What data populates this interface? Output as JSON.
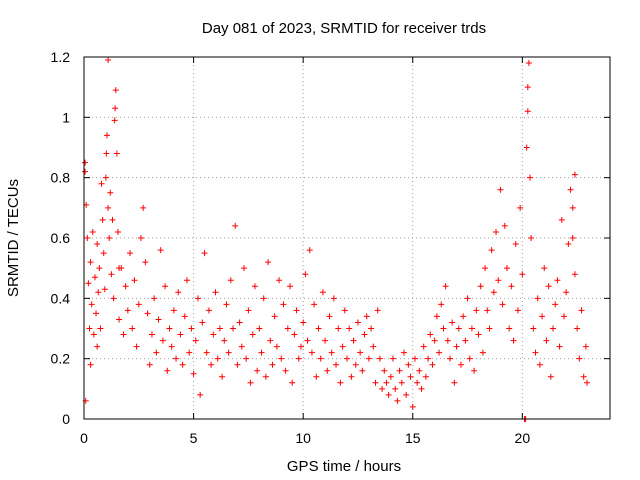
{
  "chart_data": {
    "type": "scatter",
    "title": "Day 081 of 2023, SRMTID for receiver trds",
    "xlabel": "GPS time / hours",
    "ylabel": "SRMTID / TECUs",
    "xlim": [
      0,
      24
    ],
    "ylim": [
      0,
      1.2
    ],
    "x_ticks": [
      0,
      5,
      10,
      15,
      20
    ],
    "x_tick_labels": [
      "0",
      "5",
      "10",
      "15",
      "20"
    ],
    "y_ticks": [
      0,
      0.2,
      0.4,
      0.6,
      0.8,
      1.0,
      1.2
    ],
    "y_tick_labels": [
      "0",
      "0.2",
      "0.4",
      "0.6",
      "0.8",
      "1",
      "1.2"
    ],
    "grid": true,
    "marker": "+",
    "marker_color": "#ff0000",
    "series": [
      {
        "name": "SRMTID",
        "points": [
          [
            0.05,
            0.85
          ],
          [
            0.05,
            0.82
          ],
          [
            0.1,
            0.71
          ],
          [
            0.08,
            0.06
          ],
          [
            0.15,
            0.6
          ],
          [
            0.2,
            0.45
          ],
          [
            0.25,
            0.3
          ],
          [
            0.3,
            0.52
          ],
          [
            0.35,
            0.38
          ],
          [
            0.4,
            0.62
          ],
          [
            0.45,
            0.28
          ],
          [
            0.5,
            0.47
          ],
          [
            0.55,
            0.35
          ],
          [
            0.6,
            0.58
          ],
          [
            0.65,
            0.42
          ],
          [
            0.7,
            0.5
          ],
          [
            0.75,
            0.3
          ],
          [
            0.8,
            0.78
          ],
          [
            0.85,
            0.66
          ],
          [
            0.9,
            0.55
          ],
          [
            0.95,
            0.43
          ],
          [
            1.0,
            0.8
          ],
          [
            1.02,
            0.88
          ],
          [
            1.05,
            0.94
          ],
          [
            1.1,
            0.7
          ],
          [
            1.1,
            1.19
          ],
          [
            1.15,
            0.6
          ],
          [
            1.2,
            0.75
          ],
          [
            1.25,
            0.48
          ],
          [
            1.3,
            0.66
          ],
          [
            1.35,
            0.4
          ],
          [
            1.4,
            0.99
          ],
          [
            1.42,
            1.03
          ],
          [
            1.45,
            1.09
          ],
          [
            1.5,
            0.88
          ],
          [
            1.55,
            0.62
          ],
          [
            1.6,
            0.33
          ],
          [
            1.7,
            0.5
          ],
          [
            1.8,
            0.28
          ],
          [
            1.9,
            0.44
          ],
          [
            2.0,
            0.36
          ],
          [
            2.1,
            0.55
          ],
          [
            2.2,
            0.3
          ],
          [
            2.3,
            0.46
          ],
          [
            2.4,
            0.24
          ],
          [
            2.5,
            0.38
          ],
          [
            2.6,
            0.6
          ],
          [
            2.7,
            0.7
          ],
          [
            2.8,
            0.52
          ],
          [
            2.9,
            0.35
          ],
          [
            3.0,
            0.18
          ],
          [
            3.1,
            0.28
          ],
          [
            3.2,
            0.4
          ],
          [
            3.3,
            0.22
          ],
          [
            3.4,
            0.33
          ],
          [
            3.5,
            0.56
          ],
          [
            3.6,
            0.26
          ],
          [
            3.7,
            0.44
          ],
          [
            3.8,
            0.16
          ],
          [
            3.9,
            0.3
          ],
          [
            4.0,
            0.24
          ],
          [
            4.1,
            0.36
          ],
          [
            4.2,
            0.2
          ],
          [
            4.3,
            0.42
          ],
          [
            4.4,
            0.28
          ],
          [
            4.5,
            0.18
          ],
          [
            4.6,
            0.34
          ],
          [
            4.7,
            0.46
          ],
          [
            4.8,
            0.22
          ],
          [
            4.9,
            0.3
          ],
          [
            5.0,
            0.15
          ],
          [
            5.1,
            0.26
          ],
          [
            5.2,
            0.4
          ],
          [
            5.3,
            0.08
          ],
          [
            5.4,
            0.32
          ],
          [
            5.5,
            0.55
          ],
          [
            5.6,
            0.22
          ],
          [
            5.7,
            0.36
          ],
          [
            5.8,
            0.18
          ],
          [
            5.9,
            0.28
          ],
          [
            6.0,
            0.42
          ],
          [
            6.1,
            0.2
          ],
          [
            6.2,
            0.3
          ],
          [
            6.3,
            0.14
          ],
          [
            6.4,
            0.26
          ],
          [
            6.5,
            0.38
          ],
          [
            6.6,
            0.22
          ],
          [
            6.7,
            0.46
          ],
          [
            6.8,
            0.3
          ],
          [
            6.9,
            0.64
          ],
          [
            7.0,
            0.18
          ],
          [
            7.1,
            0.32
          ],
          [
            7.2,
            0.24
          ],
          [
            7.3,
            0.5
          ],
          [
            7.4,
            0.2
          ],
          [
            7.5,
            0.36
          ],
          [
            7.6,
            0.12
          ],
          [
            7.7,
            0.28
          ],
          [
            7.8,
            0.44
          ],
          [
            7.9,
            0.16
          ],
          [
            8.0,
            0.3
          ],
          [
            8.1,
            0.22
          ],
          [
            8.2,
            0.4
          ],
          [
            8.3,
            0.14
          ],
          [
            8.4,
            0.52
          ],
          [
            8.5,
            0.26
          ],
          [
            8.6,
            0.18
          ],
          [
            8.7,
            0.34
          ],
          [
            8.8,
            0.24
          ],
          [
            8.9,
            0.46
          ],
          [
            9.0,
            0.2
          ],
          [
            9.1,
            0.38
          ],
          [
            9.2,
            0.16
          ],
          [
            9.3,
            0.3
          ],
          [
            9.4,
            0.44
          ],
          [
            9.5,
            0.12
          ],
          [
            9.6,
            0.28
          ],
          [
            9.7,
            0.36
          ],
          [
            9.8,
            0.2
          ],
          [
            9.9,
            0.24
          ],
          [
            10.0,
            0.32
          ],
          [
            10.1,
            0.48
          ],
          [
            10.2,
            0.26
          ],
          [
            10.3,
            0.56
          ],
          [
            10.4,
            0.22
          ],
          [
            10.5,
            0.38
          ],
          [
            10.6,
            0.14
          ],
          [
            10.7,
            0.3
          ],
          [
            10.8,
            0.2
          ],
          [
            10.9,
            0.42
          ],
          [
            11.0,
            0.26
          ],
          [
            11.1,
            0.16
          ],
          [
            11.2,
            0.34
          ],
          [
            11.3,
            0.22
          ],
          [
            11.4,
            0.4
          ],
          [
            11.5,
            0.18
          ],
          [
            11.6,
            0.3
          ],
          [
            11.7,
            0.12
          ],
          [
            11.8,
            0.24
          ],
          [
            11.9,
            0.36
          ],
          [
            12.0,
            0.2
          ],
          [
            12.1,
            0.3
          ],
          [
            12.2,
            0.14
          ],
          [
            12.3,
            0.26
          ],
          [
            12.4,
            0.18
          ],
          [
            12.5,
            0.32
          ],
          [
            12.6,
            0.22
          ],
          [
            12.7,
            0.16
          ],
          [
            12.8,
            0.28
          ],
          [
            12.9,
            0.34
          ],
          [
            13.0,
            0.2
          ],
          [
            13.1,
            0.3
          ],
          [
            13.2,
            0.24
          ],
          [
            13.3,
            0.12
          ],
          [
            13.4,
            0.36
          ],
          [
            13.5,
            0.2
          ],
          [
            13.6,
            0.1
          ],
          [
            13.7,
            0.16
          ],
          [
            13.8,
            0.12
          ],
          [
            13.9,
            0.08
          ],
          [
            14.0,
            0.14
          ],
          [
            14.1,
            0.2
          ],
          [
            14.2,
            0.1
          ],
          [
            14.3,
            0.06
          ],
          [
            14.4,
            0.16
          ],
          [
            14.5,
            0.12
          ],
          [
            14.6,
            0.22
          ],
          [
            14.7,
            0.08
          ],
          [
            14.8,
            0.18
          ],
          [
            14.9,
            0.14
          ],
          [
            15.0,
            0.04
          ],
          [
            15.1,
            0.2
          ],
          [
            15.2,
            0.12
          ],
          [
            15.3,
            0.16
          ],
          [
            15.4,
            0.1
          ],
          [
            15.5,
            0.24
          ],
          [
            15.6,
            0.14
          ],
          [
            15.7,
            0.2
          ],
          [
            15.8,
            0.28
          ],
          [
            15.9,
            0.18
          ],
          [
            16.0,
            0.26
          ],
          [
            16.1,
            0.34
          ],
          [
            16.2,
            0.22
          ],
          [
            16.3,
            0.38
          ],
          [
            16.4,
            0.3
          ],
          [
            16.5,
            0.44
          ],
          [
            16.6,
            0.26
          ],
          [
            16.7,
            0.2
          ],
          [
            16.8,
            0.32
          ],
          [
            16.9,
            0.12
          ],
          [
            17.0,
            0.24
          ],
          [
            17.1,
            0.3
          ],
          [
            17.2,
            0.18
          ],
          [
            17.3,
            0.34
          ],
          [
            17.4,
            0.26
          ],
          [
            17.5,
            0.4
          ],
          [
            17.6,
            0.2
          ],
          [
            17.7,
            0.3
          ],
          [
            17.8,
            0.16
          ],
          [
            17.9,
            0.36
          ],
          [
            18.0,
            0.28
          ],
          [
            18.1,
            0.44
          ],
          [
            18.2,
            0.22
          ],
          [
            18.3,
            0.5
          ],
          [
            18.4,
            0.36
          ],
          [
            18.5,
            0.3
          ],
          [
            18.6,
            0.56
          ],
          [
            18.7,
            0.42
          ],
          [
            18.8,
            0.62
          ],
          [
            18.9,
            0.46
          ],
          [
            19.0,
            0.76
          ],
          [
            19.1,
            0.38
          ],
          [
            19.2,
            0.64
          ],
          [
            19.3,
            0.5
          ],
          [
            19.4,
            0.3
          ],
          [
            19.5,
            0.44
          ],
          [
            19.6,
            0.26
          ],
          [
            19.7,
            0.58
          ],
          [
            19.8,
            0.36
          ],
          [
            19.9,
            0.7
          ],
          [
            20.0,
            0.48
          ],
          [
            20.1,
            0.0
          ],
          [
            20.15,
            0.0
          ],
          [
            20.2,
            0.9
          ],
          [
            20.25,
            1.02
          ],
          [
            20.25,
            1.1
          ],
          [
            20.3,
            1.18
          ],
          [
            20.35,
            0.8
          ],
          [
            20.4,
            0.6
          ],
          [
            20.5,
            0.3
          ],
          [
            20.6,
            0.22
          ],
          [
            20.7,
            0.4
          ],
          [
            20.8,
            0.18
          ],
          [
            20.9,
            0.34
          ],
          [
            21.0,
            0.5
          ],
          [
            21.1,
            0.26
          ],
          [
            21.2,
            0.44
          ],
          [
            21.3,
            0.14
          ],
          [
            21.4,
            0.3
          ],
          [
            21.5,
            0.38
          ],
          [
            21.6,
            0.46
          ],
          [
            21.7,
            0.24
          ],
          [
            21.8,
            0.66
          ],
          [
            21.9,
            0.34
          ],
          [
            22.0,
            0.42
          ],
          [
            22.1,
            0.58
          ],
          [
            22.2,
            0.76
          ],
          [
            22.3,
            0.6
          ],
          [
            22.4,
            0.48
          ],
          [
            22.5,
            0.3
          ],
          [
            22.6,
            0.2
          ],
          [
            22.7,
            0.36
          ],
          [
            22.8,
            0.14
          ],
          [
            22.9,
            0.24
          ],
          [
            22.95,
            0.12
          ],
          [
            22.4,
            0.81
          ],
          [
            22.3,
            0.7
          ],
          [
            0.3,
            0.18
          ],
          [
            0.6,
            0.24
          ],
          [
            1.6,
            0.5
          ]
        ]
      }
    ]
  }
}
